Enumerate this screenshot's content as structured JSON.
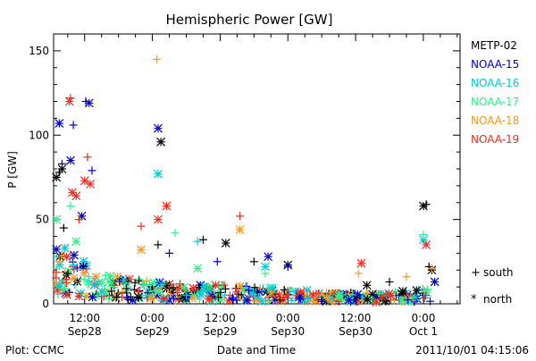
{
  "footer": {
    "left": "Plot: CCMC",
    "center": "Date and Time",
    "right": "2011/10/01  04:15:06"
  },
  "chart_data": {
    "type": "scatter",
    "title": "Hemispheric Power [GW]",
    "xlabel": "Date and Time",
    "ylabel": "P [GW]",
    "x_unit": "hours since 2011-09-27 00:00 UT",
    "xlim": [
      6.5,
      78.5
    ],
    "ylim": [
      0,
      160
    ],
    "yticks": [
      0,
      50,
      100,
      150
    ],
    "xticks": [
      {
        "x": 12,
        "time": "12:00",
        "date": "Sep28"
      },
      {
        "x": 24,
        "time": "0:00",
        "date": "Sep29"
      },
      {
        "x": 36,
        "time": "12:00",
        "date": "Sep29"
      },
      {
        "x": 48,
        "time": "0:00",
        "date": "Sep30"
      },
      {
        "x": 60,
        "time": "12:00",
        "date": "Sep30"
      },
      {
        "x": 72,
        "time": "0:00",
        "date": "Oct 1"
      }
    ],
    "grid": false,
    "legend_position": "right",
    "marker_legend": [
      {
        "glyph": "+",
        "label": "south"
      },
      {
        "glyph": "*",
        "label": "north"
      }
    ],
    "series": [
      {
        "name": "METP-02",
        "color": "#000000",
        "points": [
          {
            "x": 7.0,
            "y": 75,
            "m": "*"
          },
          {
            "x": 7.5,
            "y": 78,
            "m": "+"
          },
          {
            "x": 8.0,
            "y": 80,
            "m": "*"
          },
          {
            "x": 8.3,
            "y": 45,
            "m": "+"
          },
          {
            "x": 25.5,
            "y": 96,
            "m": "*"
          },
          {
            "x": 25.0,
            "y": 35,
            "m": "+"
          },
          {
            "x": 33.0,
            "y": 38,
            "m": "+"
          },
          {
            "x": 37.0,
            "y": 36,
            "m": "*"
          },
          {
            "x": 42.0,
            "y": 25,
            "m": "+"
          },
          {
            "x": 48.0,
            "y": 23,
            "m": "*"
          },
          {
            "x": 62.0,
            "y": 11,
            "m": "*"
          },
          {
            "x": 66.0,
            "y": 13,
            "m": "+"
          },
          {
            "x": 72.0,
            "y": 58,
            "m": "*"
          },
          {
            "x": 72.5,
            "y": 59,
            "m": "+"
          },
          {
            "x": 73.5,
            "y": 20,
            "m": "*"
          },
          {
            "x": 73.0,
            "y": 22,
            "m": "+"
          }
        ]
      },
      {
        "name": "NOAA-15",
        "color": "#0000cc",
        "points": [
          {
            "x": 7.5,
            "y": 107,
            "m": "*"
          },
          {
            "x": 8.0,
            "y": 83,
            "m": "+"
          },
          {
            "x": 9.5,
            "y": 85,
            "m": "*"
          },
          {
            "x": 10.0,
            "y": 106,
            "m": "+"
          },
          {
            "x": 12.2,
            "y": 120,
            "m": "+"
          },
          {
            "x": 12.8,
            "y": 119,
            "m": "*"
          },
          {
            "x": 13.3,
            "y": 79,
            "m": "+"
          },
          {
            "x": 11.5,
            "y": 52,
            "m": "*"
          },
          {
            "x": 25.0,
            "y": 104,
            "m": "*"
          },
          {
            "x": 27.0,
            "y": 30,
            "m": "+"
          },
          {
            "x": 35.5,
            "y": 25,
            "m": "+"
          },
          {
            "x": 44.5,
            "y": 28,
            "m": "*"
          },
          {
            "x": 48.0,
            "y": 22,
            "m": "+"
          },
          {
            "x": 74.0,
            "y": 13,
            "m": "*"
          }
        ]
      },
      {
        "name": "NOAA-16",
        "color": "#00c8e0",
        "points": [
          {
            "x": 7.0,
            "y": 28,
            "m": "+"
          },
          {
            "x": 8.5,
            "y": 33,
            "m": "*"
          },
          {
            "x": 10.0,
            "y": 23,
            "m": "+"
          },
          {
            "x": 25.0,
            "y": 77,
            "m": "*"
          },
          {
            "x": 32.0,
            "y": 37,
            "m": "+"
          },
          {
            "x": 44.0,
            "y": 22,
            "m": "*"
          },
          {
            "x": 72.0,
            "y": 38,
            "m": "*"
          }
        ]
      },
      {
        "name": "NOAA-17",
        "color": "#33ee88",
        "points": [
          {
            "x": 7.0,
            "y": 50,
            "m": "*"
          },
          {
            "x": 9.5,
            "y": 58,
            "m": "+"
          },
          {
            "x": 10.5,
            "y": 37,
            "m": "*"
          },
          {
            "x": 28.0,
            "y": 42,
            "m": "+"
          },
          {
            "x": 32.0,
            "y": 21,
            "m": "*"
          },
          {
            "x": 44.0,
            "y": 18,
            "m": "+"
          },
          {
            "x": 72.0,
            "y": 41,
            "m": "+"
          },
          {
            "x": 57.0,
            "y": 5,
            "m": "*"
          }
        ]
      },
      {
        "name": "NOAA-18",
        "color": "#f59a20",
        "points": [
          {
            "x": 7.5,
            "y": 25,
            "m": "+"
          },
          {
            "x": 10.0,
            "y": 15,
            "m": "*"
          },
          {
            "x": 24.8,
            "y": 145,
            "m": "+"
          },
          {
            "x": 22.0,
            "y": 32,
            "m": "*"
          },
          {
            "x": 39.5,
            "y": 44,
            "m": "*"
          },
          {
            "x": 60.5,
            "y": 18,
            "m": "+"
          },
          {
            "x": 69.0,
            "y": 16,
            "m": "+"
          },
          {
            "x": 73.5,
            "y": 21,
            "m": "+"
          }
        ]
      },
      {
        "name": "NOAA-19",
        "color": "#e83020",
        "points": [
          {
            "x": 9.5,
            "y": 122,
            "m": "+"
          },
          {
            "x": 9.3,
            "y": 120,
            "m": "*"
          },
          {
            "x": 9.8,
            "y": 66,
            "m": "*"
          },
          {
            "x": 10.5,
            "y": 64,
            "m": "*"
          },
          {
            "x": 12.5,
            "y": 87,
            "m": "+"
          },
          {
            "x": 12.0,
            "y": 73,
            "m": "*"
          },
          {
            "x": 13.0,
            "y": 71,
            "m": "*"
          },
          {
            "x": 11.0,
            "y": 50,
            "m": "+"
          },
          {
            "x": 26.5,
            "y": 58,
            "m": "*"
          },
          {
            "x": 25.0,
            "y": 50,
            "m": "*"
          },
          {
            "x": 22.0,
            "y": 46,
            "m": "+"
          },
          {
            "x": 39.5,
            "y": 52,
            "m": "+"
          },
          {
            "x": 61.0,
            "y": 24,
            "m": "*"
          },
          {
            "x": 72.5,
            "y": 35,
            "m": "*"
          }
        ]
      }
    ],
    "dense_cluster_envelope": [
      {
        "x": 6.5,
        "y": 35
      },
      {
        "x": 10,
        "y": 28
      },
      {
        "x": 14,
        "y": 18
      },
      {
        "x": 20,
        "y": 14
      },
      {
        "x": 26,
        "y": 12
      },
      {
        "x": 32,
        "y": 11
      },
      {
        "x": 38,
        "y": 10
      },
      {
        "x": 44,
        "y": 9
      },
      {
        "x": 50,
        "y": 8
      },
      {
        "x": 56,
        "y": 6
      },
      {
        "x": 62,
        "y": 6
      },
      {
        "x": 68,
        "y": 7
      },
      {
        "x": 73,
        "y": 9
      }
    ]
  }
}
